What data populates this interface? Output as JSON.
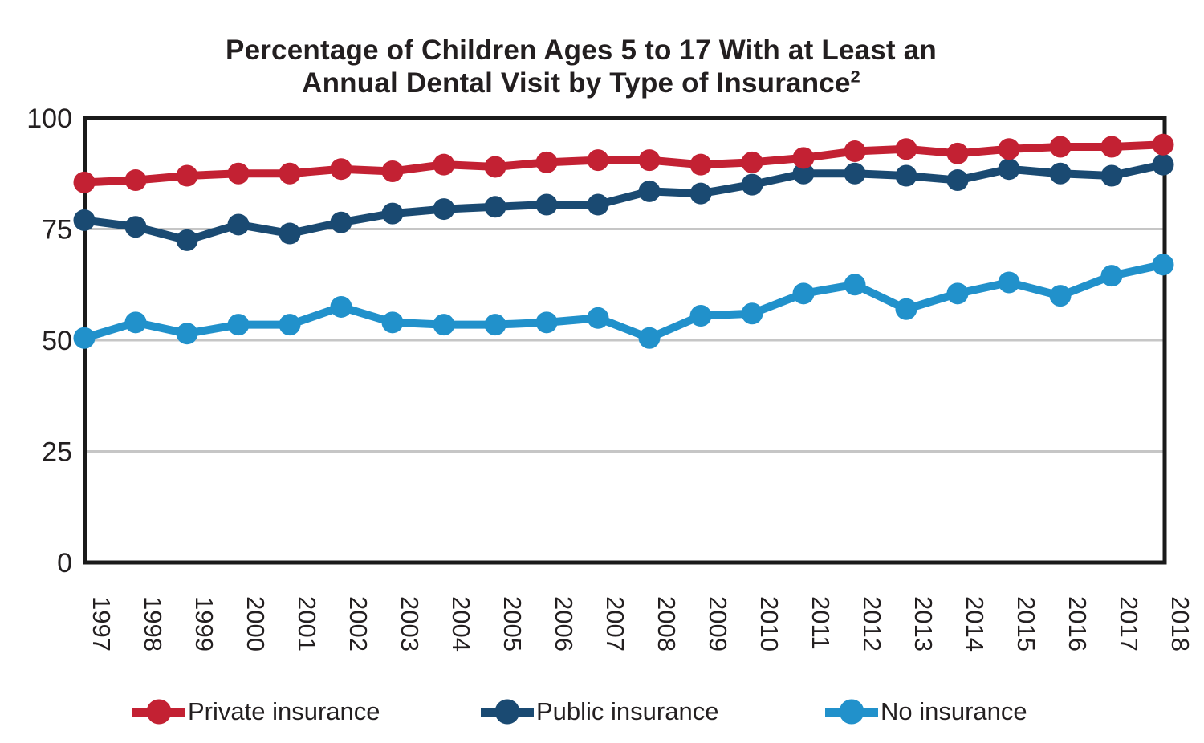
{
  "title": {
    "line1": "Percentage of Children Ages 5 to 17 With at Least an",
    "line2": "Annual Dental Visit by Type of Insurance",
    "superscript": "2"
  },
  "colors": {
    "private": "#C32133",
    "public": "#1A4A72",
    "none": "#2191CB",
    "gridline": "#C6C6C6",
    "axis": "#1A1A1A",
    "text": "#231F20"
  },
  "chart_data": {
    "type": "line",
    "title": "Percentage of Children Ages 5 to 17 With at Least an Annual Dental Visit by Type of Insurance²",
    "xlabel": "",
    "ylabel": "",
    "x": [
      1997,
      1998,
      1999,
      2000,
      2001,
      2002,
      2003,
      2004,
      2005,
      2006,
      2007,
      2008,
      2009,
      2010,
      2011,
      2012,
      2013,
      2014,
      2015,
      2016,
      2017,
      2018
    ],
    "series": [
      {
        "name": "Private insurance",
        "color": "#C32133",
        "values": [
          85.5,
          86,
          87,
          87.5,
          87.5,
          88.5,
          88,
          89.5,
          89,
          90,
          90.5,
          90.5,
          89.5,
          90,
          91,
          92.5,
          93,
          92,
          93,
          93.5,
          93.5,
          94
        ]
      },
      {
        "name": "Public insurance",
        "color": "#1A4A72",
        "values": [
          77,
          75.5,
          72.5,
          76,
          74,
          76.5,
          78.5,
          79.5,
          80,
          80.5,
          80.5,
          83.5,
          83,
          85,
          87.5,
          87.5,
          87,
          86,
          88.5,
          87.5,
          87,
          89.5
        ]
      },
      {
        "name": "No insurance",
        "color": "#2191CB",
        "values": [
          50.5,
          54,
          51.5,
          53.5,
          53.5,
          57.5,
          54,
          53.5,
          53.5,
          54,
          55,
          50.5,
          55.5,
          56,
          60.5,
          62.5,
          57,
          60.5,
          63,
          60,
          64.5,
          67
        ]
      }
    ],
    "ylim": [
      0,
      100
    ],
    "yticks": [
      0,
      25,
      50,
      75,
      100
    ],
    "grid": "horizontal gridlines at 25, 50, 75",
    "x_tick_rotation_deg": 90,
    "legend_position": "bottom"
  }
}
